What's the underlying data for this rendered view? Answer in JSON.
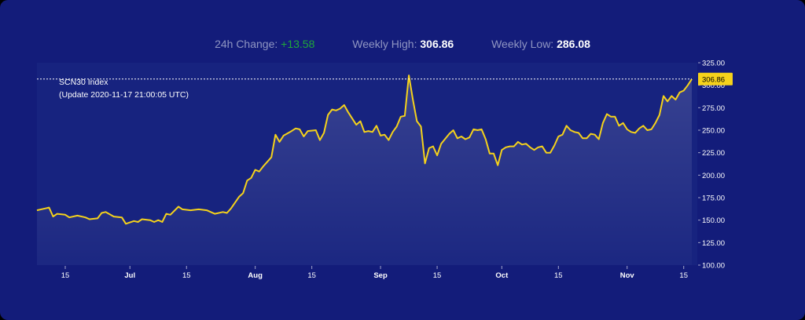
{
  "header": {
    "change_label": "24h Change:",
    "change_value": "+13.58",
    "high_label": "Weekly High:",
    "high_value": "306.86",
    "low_label": "Weekly Low:",
    "low_value": "286.08"
  },
  "info": {
    "index_name": "SCN30 Index",
    "update_text": "(Update 2020-11-17 21:00:05 UTC)"
  },
  "colors": {
    "background": "#131c7a",
    "line": "#f5d21b",
    "positive": "#1fa83a",
    "badge": "#f5d21b"
  },
  "chart_data": {
    "type": "line",
    "title": "",
    "xlabel": "",
    "ylabel": "",
    "ylim": [
      100,
      325
    ],
    "yticks": [
      "100.00",
      "125.00",
      "150.00",
      "175.00",
      "200.00",
      "225.00",
      "250.00",
      "275.00",
      "300.00",
      "325.00"
    ],
    "xlim": [
      "2020-06-08",
      "2020-11-17"
    ],
    "xticks": [
      {
        "date": "2020-06-15",
        "label": "15"
      },
      {
        "date": "2020-07-01",
        "label": "Jul"
      },
      {
        "date": "2020-07-15",
        "label": "15"
      },
      {
        "date": "2020-08-01",
        "label": "Aug"
      },
      {
        "date": "2020-08-15",
        "label": "15"
      },
      {
        "date": "2020-09-01",
        "label": "Sep"
      },
      {
        "date": "2020-09-15",
        "label": "15"
      },
      {
        "date": "2020-10-01",
        "label": "Oct"
      },
      {
        "date": "2020-10-15",
        "label": "15"
      },
      {
        "date": "2020-11-01",
        "label": "Nov"
      },
      {
        "date": "2020-11-15",
        "label": "15"
      }
    ],
    "reference_line": {
      "value": 306.86,
      "label": "306.86"
    },
    "series": [
      {
        "points": [
          [
            "2020-06-08",
            161
          ],
          [
            "2020-06-10",
            163
          ],
          [
            "2020-06-11",
            164
          ],
          [
            "2020-06-12",
            154
          ],
          [
            "2020-06-13",
            157
          ],
          [
            "2020-06-15",
            156
          ],
          [
            "2020-06-16",
            153
          ],
          [
            "2020-06-18",
            155
          ],
          [
            "2020-06-20",
            153
          ],
          [
            "2020-06-21",
            151
          ],
          [
            "2020-06-23",
            152
          ],
          [
            "2020-06-24",
            158
          ],
          [
            "2020-06-25",
            159
          ],
          [
            "2020-06-27",
            154
          ],
          [
            "2020-06-29",
            153
          ],
          [
            "2020-06-30",
            146
          ],
          [
            "2020-07-02",
            149
          ],
          [
            "2020-07-03",
            148
          ],
          [
            "2020-07-04",
            151
          ],
          [
            "2020-07-06",
            150
          ],
          [
            "2020-07-07",
            148
          ],
          [
            "2020-07-08",
            150
          ],
          [
            "2020-07-09",
            148
          ],
          [
            "2020-07-10",
            157
          ],
          [
            "2020-07-11",
            156
          ],
          [
            "2020-07-13",
            165
          ],
          [
            "2020-07-14",
            162
          ],
          [
            "2020-07-16",
            161
          ],
          [
            "2020-07-18",
            162
          ],
          [
            "2020-07-20",
            161
          ],
          [
            "2020-07-22",
            157
          ],
          [
            "2020-07-24",
            159
          ],
          [
            "2020-07-25",
            158
          ],
          [
            "2020-07-26",
            163
          ],
          [
            "2020-07-28",
            176
          ],
          [
            "2020-07-29",
            180
          ],
          [
            "2020-07-30",
            194
          ],
          [
            "2020-07-31",
            197
          ],
          [
            "2020-08-01",
            206
          ],
          [
            "2020-08-02",
            204
          ],
          [
            "2020-08-03",
            210
          ],
          [
            "2020-08-05",
            220
          ],
          [
            "2020-08-06",
            245
          ],
          [
            "2020-08-07",
            237
          ],
          [
            "2020-08-08",
            244
          ],
          [
            "2020-08-10",
            249
          ],
          [
            "2020-08-11",
            252
          ],
          [
            "2020-08-12",
            251
          ],
          [
            "2020-08-13",
            243
          ],
          [
            "2020-08-14",
            249
          ],
          [
            "2020-08-16",
            250
          ],
          [
            "2020-08-17",
            239
          ],
          [
            "2020-08-18",
            247
          ],
          [
            "2020-08-19",
            267
          ],
          [
            "2020-08-20",
            273
          ],
          [
            "2020-08-21",
            272
          ],
          [
            "2020-08-22",
            274
          ],
          [
            "2020-08-23",
            278
          ],
          [
            "2020-08-24",
            270
          ],
          [
            "2020-08-26",
            256
          ],
          [
            "2020-08-27",
            260
          ],
          [
            "2020-08-28",
            248
          ],
          [
            "2020-08-29",
            249
          ],
          [
            "2020-08-30",
            248
          ],
          [
            "2020-08-31",
            255
          ],
          [
            "2020-09-01",
            244
          ],
          [
            "2020-09-02",
            245
          ],
          [
            "2020-09-03",
            239
          ],
          [
            "2020-09-04",
            248
          ],
          [
            "2020-09-05",
            254
          ],
          [
            "2020-09-06",
            265
          ],
          [
            "2020-09-07",
            266
          ],
          [
            "2020-09-08",
            311
          ],
          [
            "2020-09-09",
            284
          ],
          [
            "2020-09-10",
            260
          ],
          [
            "2020-09-11",
            254
          ],
          [
            "2020-09-12",
            213
          ],
          [
            "2020-09-13",
            230
          ],
          [
            "2020-09-14",
            232
          ],
          [
            "2020-09-15",
            222
          ],
          [
            "2020-09-16",
            235
          ],
          [
            "2020-09-18",
            246
          ],
          [
            "2020-09-19",
            250
          ],
          [
            "2020-09-20",
            241
          ],
          [
            "2020-09-21",
            243
          ],
          [
            "2020-09-22",
            240
          ],
          [
            "2020-09-23",
            242
          ],
          [
            "2020-09-24",
            251
          ],
          [
            "2020-09-25",
            250
          ],
          [
            "2020-09-26",
            251
          ],
          [
            "2020-09-27",
            240
          ],
          [
            "2020-09-28",
            224
          ],
          [
            "2020-09-29",
            224
          ],
          [
            "2020-09-30",
            211
          ],
          [
            "2020-10-01",
            228
          ],
          [
            "2020-10-02",
            231
          ],
          [
            "2020-10-03",
            232
          ],
          [
            "2020-10-04",
            232
          ],
          [
            "2020-10-05",
            237
          ],
          [
            "2020-10-06",
            234
          ],
          [
            "2020-10-07",
            235
          ],
          [
            "2020-10-08",
            231
          ],
          [
            "2020-10-09",
            228
          ],
          [
            "2020-10-10",
            231
          ],
          [
            "2020-10-11",
            232
          ],
          [
            "2020-10-12",
            225
          ],
          [
            "2020-10-13",
            225
          ],
          [
            "2020-10-14",
            233
          ],
          [
            "2020-10-15",
            243
          ],
          [
            "2020-10-16",
            245
          ],
          [
            "2020-10-17",
            255
          ],
          [
            "2020-10-18",
            250
          ],
          [
            "2020-10-19",
            248
          ],
          [
            "2020-10-20",
            247
          ],
          [
            "2020-10-21",
            241
          ],
          [
            "2020-10-22",
            241
          ],
          [
            "2020-10-23",
            246
          ],
          [
            "2020-10-24",
            245
          ],
          [
            "2020-10-25",
            240
          ],
          [
            "2020-10-26",
            258
          ],
          [
            "2020-10-27",
            268
          ],
          [
            "2020-10-28",
            265
          ],
          [
            "2020-10-29",
            265
          ],
          [
            "2020-10-30",
            255
          ],
          [
            "2020-10-31",
            258
          ],
          [
            "2020-11-01",
            251
          ],
          [
            "2020-11-02",
            248
          ],
          [
            "2020-11-03",
            247
          ],
          [
            "2020-11-04",
            252
          ],
          [
            "2020-11-05",
            255
          ],
          [
            "2020-11-06",
            250
          ],
          [
            "2020-11-07",
            251
          ],
          [
            "2020-11-08",
            258
          ],
          [
            "2020-11-09",
            267
          ],
          [
            "2020-11-10",
            288
          ],
          [
            "2020-11-11",
            282
          ],
          [
            "2020-11-12",
            288
          ],
          [
            "2020-11-13",
            284
          ],
          [
            "2020-11-14",
            292
          ],
          [
            "2020-11-15",
            294
          ],
          [
            "2020-11-16",
            300
          ],
          [
            "2020-11-17",
            306.86
          ]
        ]
      }
    ]
  }
}
